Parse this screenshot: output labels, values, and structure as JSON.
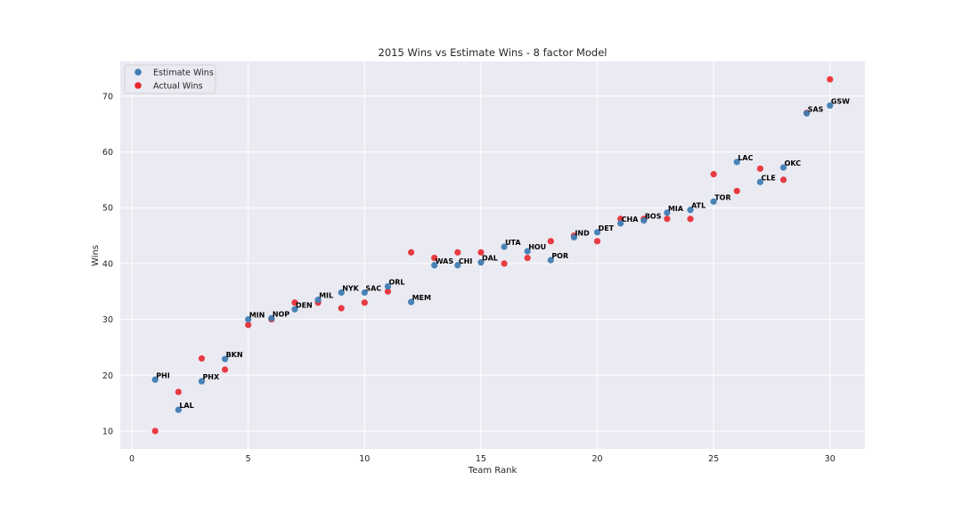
{
  "chart_data": {
    "type": "scatter",
    "title": "2015 Wins vs Estimate Wins - 8 factor Model",
    "xlabel": "Team Rank",
    "ylabel": "Wins",
    "xlim": [
      -0.5,
      31.5
    ],
    "ylim": [
      6.8,
      76.2
    ],
    "xticks": [
      0,
      5,
      10,
      15,
      20,
      25,
      30
    ],
    "yticks": [
      10,
      20,
      30,
      40,
      50,
      60,
      70
    ],
    "grid": true,
    "legend_position": "top-left",
    "series": [
      {
        "name": "Estimate Wins",
        "color": "#3f7db3",
        "points": [
          {
            "x": 1,
            "y": 19.2,
            "label": "PHI"
          },
          {
            "x": 2,
            "y": 13.8,
            "label": "LAL"
          },
          {
            "x": 3,
            "y": 18.9,
            "label": "PHX"
          },
          {
            "x": 4,
            "y": 22.9,
            "label": "BKN"
          },
          {
            "x": 5,
            "y": 30.0,
            "label": "MIN"
          },
          {
            "x": 6,
            "y": 30.2,
            "label": "NOP"
          },
          {
            "x": 7,
            "y": 31.8,
            "label": "DEN"
          },
          {
            "x": 8,
            "y": 33.5,
            "label": "MIL"
          },
          {
            "x": 9,
            "y": 34.8,
            "label": "NYK"
          },
          {
            "x": 10,
            "y": 34.8,
            "label": "SAC"
          },
          {
            "x": 11,
            "y": 35.9,
            "label": "ORL"
          },
          {
            "x": 12,
            "y": 33.1,
            "label": "MEM"
          },
          {
            "x": 13,
            "y": 39.7,
            "label": "WAS"
          },
          {
            "x": 14,
            "y": 39.7,
            "label": "CHI"
          },
          {
            "x": 15,
            "y": 40.2,
            "label": "DAL"
          },
          {
            "x": 16,
            "y": 43.0,
            "label": "UTA"
          },
          {
            "x": 17,
            "y": 42.2,
            "label": "HOU"
          },
          {
            "x": 18,
            "y": 40.6,
            "label": "POR"
          },
          {
            "x": 19,
            "y": 44.7,
            "label": "IND"
          },
          {
            "x": 20,
            "y": 45.6,
            "label": "DET"
          },
          {
            "x": 21,
            "y": 47.2,
            "label": "CHA"
          },
          {
            "x": 22,
            "y": 47.7,
            "label": "BOS"
          },
          {
            "x": 23,
            "y": 49.1,
            "label": "MIA"
          },
          {
            "x": 24,
            "y": 49.6,
            "label": "ATL"
          },
          {
            "x": 25,
            "y": 51.1,
            "label": "TOR"
          },
          {
            "x": 26,
            "y": 58.2,
            "label": "LAC"
          },
          {
            "x": 27,
            "y": 54.6,
            "label": "CLE"
          },
          {
            "x": 28,
            "y": 57.2,
            "label": "OKC"
          },
          {
            "x": 29,
            "y": 66.9,
            "label": "SAS"
          },
          {
            "x": 30,
            "y": 68.3,
            "label": "GSW"
          }
        ]
      },
      {
        "name": "Actual Wins",
        "color": "#e8272d",
        "points": [
          {
            "x": 1,
            "y": 10
          },
          {
            "x": 2,
            "y": 17
          },
          {
            "x": 3,
            "y": 23
          },
          {
            "x": 4,
            "y": 21
          },
          {
            "x": 5,
            "y": 29
          },
          {
            "x": 6,
            "y": 30
          },
          {
            "x": 7,
            "y": 33
          },
          {
            "x": 8,
            "y": 33
          },
          {
            "x": 9,
            "y": 32
          },
          {
            "x": 10,
            "y": 33
          },
          {
            "x": 11,
            "y": 35
          },
          {
            "x": 12,
            "y": 42
          },
          {
            "x": 13,
            "y": 41
          },
          {
            "x": 14,
            "y": 42
          },
          {
            "x": 15,
            "y": 42
          },
          {
            "x": 16,
            "y": 40
          },
          {
            "x": 17,
            "y": 41
          },
          {
            "x": 18,
            "y": 44
          },
          {
            "x": 19,
            "y": 45
          },
          {
            "x": 20,
            "y": 44
          },
          {
            "x": 21,
            "y": 48
          },
          {
            "x": 22,
            "y": 48
          },
          {
            "x": 23,
            "y": 48
          },
          {
            "x": 24,
            "y": 48
          },
          {
            "x": 25,
            "y": 56
          },
          {
            "x": 26,
            "y": 53
          },
          {
            "x": 27,
            "y": 57
          },
          {
            "x": 28,
            "y": 55
          },
          {
            "x": 29,
            "y": 67
          },
          {
            "x": 30,
            "y": 73
          }
        ]
      }
    ]
  }
}
